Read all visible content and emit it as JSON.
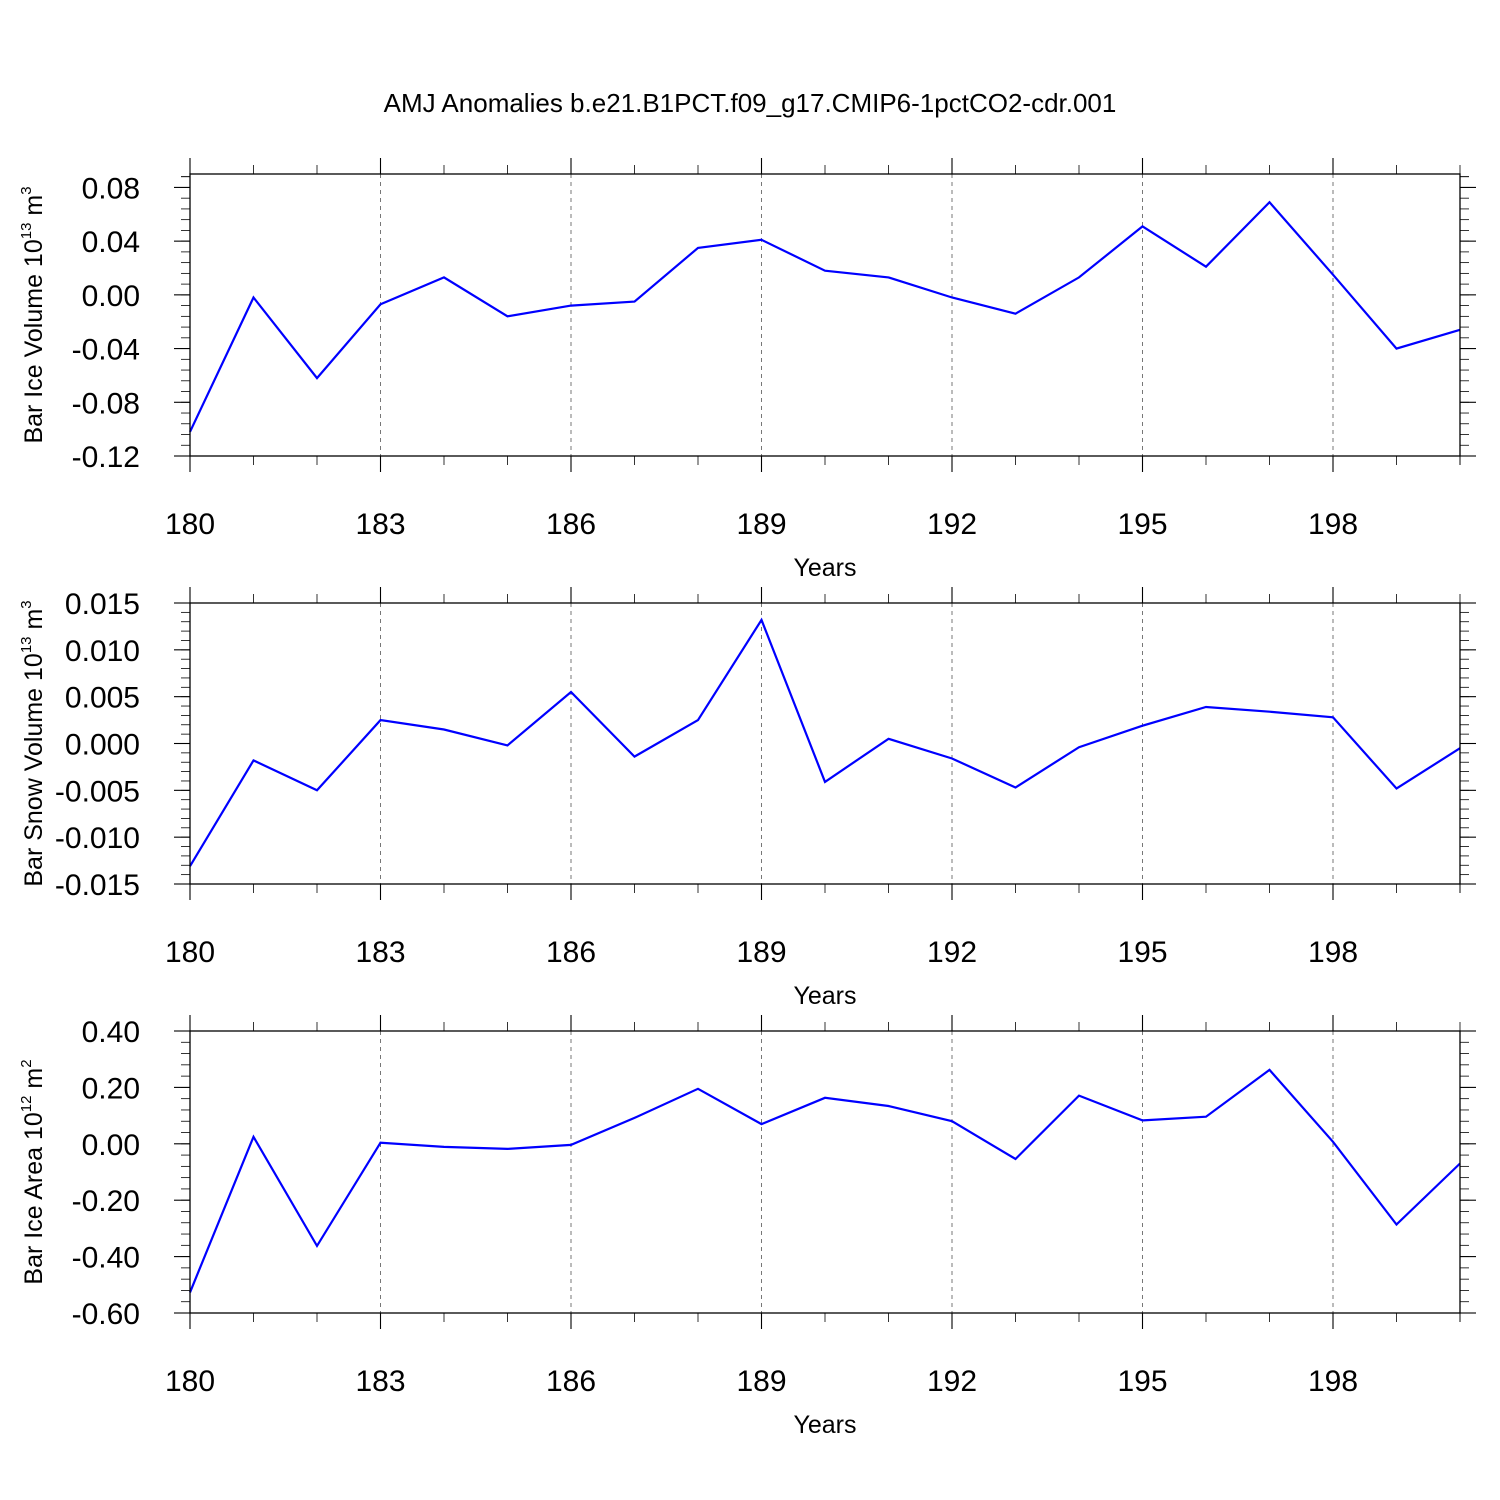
{
  "title": "AMJ Anomalies b.e21.B1PCT.f09_g17.CMIP6-1pctCO2-cdr.001",
  "colors": {
    "line": "#0000ff",
    "frame": "#000000",
    "grid": "#777777"
  },
  "chart_data": [
    {
      "type": "line",
      "ylabel": {
        "base": "Bar Ice Volume 10",
        "exponent": "13",
        "unit": " m",
        "unit_exponent": "3"
      },
      "xlabel": "Years",
      "xlim": [
        180,
        200
      ],
      "xticks": [
        180,
        183,
        186,
        189,
        192,
        195,
        198
      ],
      "xtick_labels": [
        "180",
        "183",
        "186",
        "189",
        "192",
        "195",
        "198"
      ],
      "ylim": [
        -0.12,
        0.09
      ],
      "yticks": [
        -0.12,
        -0.08,
        -0.04,
        0.0,
        0.04,
        0.08
      ],
      "ytick_labels": [
        "-0.12",
        "-0.08",
        "-0.04",
        "0.00",
        "0.04",
        "0.08"
      ],
      "grid": "vertical dashed at major x ticks",
      "x": [
        180,
        181,
        182,
        183,
        184,
        185,
        186,
        187,
        188,
        189,
        190,
        191,
        192,
        193,
        194,
        195,
        196,
        197,
        198,
        199,
        200
      ],
      "series": [
        {
          "values": [
            -0.102,
            -0.002,
            -0.062,
            -0.007,
            0.013,
            -0.016,
            -0.008,
            -0.005,
            0.035,
            0.041,
            0.018,
            0.013,
            -0.002,
            -0.014,
            0.013,
            0.051,
            0.021,
            0.069,
            0.015,
            -0.04,
            -0.026
          ]
        }
      ]
    },
    {
      "type": "line",
      "ylabel": {
        "base": "Bar Snow Volume 10",
        "exponent": "13",
        "unit": " m",
        "unit_exponent": "3"
      },
      "xlabel": "Years",
      "xlim": [
        180,
        200
      ],
      "xticks": [
        180,
        183,
        186,
        189,
        192,
        195,
        198
      ],
      "xtick_labels": [
        "180",
        "183",
        "186",
        "189",
        "192",
        "195",
        "198"
      ],
      "ylim": [
        -0.015,
        0.015
      ],
      "yticks": [
        -0.015,
        -0.01,
        -0.005,
        0.0,
        0.005,
        0.01,
        0.015
      ],
      "ytick_labels": [
        "-0.015",
        "-0.010",
        "-0.005",
        "0.000",
        "0.005",
        "0.010",
        "0.015"
      ],
      "grid": "vertical dashed at major x ticks",
      "x": [
        180,
        181,
        182,
        183,
        184,
        185,
        186,
        187,
        188,
        189,
        190,
        191,
        192,
        193,
        194,
        195,
        196,
        197,
        198,
        199,
        200
      ],
      "series": [
        {
          "values": [
            -0.0131,
            -0.0018,
            -0.005,
            0.0025,
            0.0015,
            -0.0002,
            0.0055,
            -0.0014,
            0.0025,
            0.0132,
            -0.0041,
            0.0005,
            -0.0016,
            -0.0047,
            -0.0004,
            0.0019,
            0.0039,
            0.0034,
            0.0028,
            -0.0048,
            -0.0005
          ]
        }
      ]
    },
    {
      "type": "line",
      "ylabel": {
        "base": "Bar Ice Area 10",
        "exponent": "12",
        "unit": " m",
        "unit_exponent": "2"
      },
      "xlabel": "Years",
      "xlim": [
        180,
        200
      ],
      "xticks": [
        180,
        183,
        186,
        189,
        192,
        195,
        198
      ],
      "xtick_labels": [
        "180",
        "183",
        "186",
        "189",
        "192",
        "195",
        "198"
      ],
      "ylim": [
        -0.6,
        0.4
      ],
      "yticks": [
        -0.6,
        -0.4,
        -0.2,
        0.0,
        0.2,
        0.4
      ],
      "ytick_labels": [
        "-0.60",
        "-0.40",
        "-0.20",
        "0.00",
        "0.20",
        "0.40"
      ],
      "grid": "vertical dashed at major x ticks",
      "x": [
        180,
        181,
        182,
        183,
        184,
        185,
        186,
        187,
        188,
        189,
        190,
        191,
        192,
        193,
        194,
        195,
        196,
        197,
        198,
        199,
        200
      ],
      "series": [
        {
          "values": [
            -0.527,
            0.025,
            -0.362,
            0.004,
            -0.011,
            -0.018,
            -0.004,
            0.092,
            0.195,
            0.07,
            0.163,
            0.134,
            0.08,
            -0.054,
            0.171,
            0.083,
            0.096,
            0.262,
            0.007,
            -0.286,
            -0.07
          ]
        }
      ]
    }
  ]
}
